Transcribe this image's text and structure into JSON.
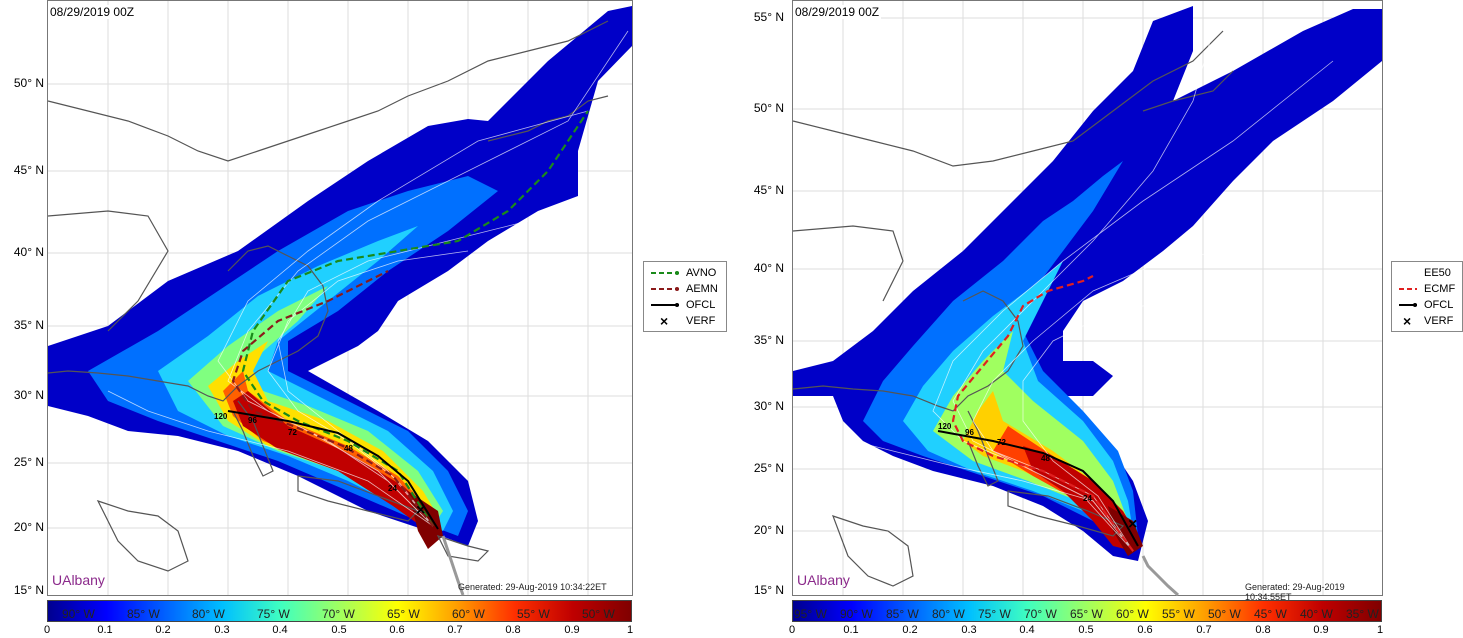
{
  "left": {
    "date": "08/29/2019 00Z",
    "lat_labels": [
      "50° N",
      "45° N",
      "40° N",
      "35° N",
      "30° N",
      "25° N",
      "20° N",
      "15° N"
    ],
    "brand": "UAlbany",
    "generated": "Generated: 29-Aug-2019 10:34:22ET",
    "legend": [
      {
        "label": "AVNO",
        "color": "#1a8a1a",
        "style": "dashed"
      },
      {
        "label": "AEMN",
        "color": "#8b1a1a",
        "style": "dashed"
      },
      {
        "label": "OFCL",
        "color": "#000000",
        "style": "solid"
      },
      {
        "label": "VERF",
        "color": "#000000",
        "style": "x"
      }
    ],
    "colorbar_ticks": [
      "0",
      "0.1",
      "0.2",
      "0.3",
      "0.4",
      "0.5",
      "0.6",
      "0.7",
      "0.8",
      "0.9",
      "1"
    ],
    "lon_labels": [
      "90° W",
      "85° W",
      "80° W",
      "75° W",
      "70° W",
      "65° W",
      "60° W",
      "55° W",
      "50° W"
    ],
    "track_labels": [
      "120",
      "96",
      "72",
      "48",
      "24"
    ]
  },
  "right": {
    "date": "08/29/2019 00Z",
    "lat_labels": [
      "55° N",
      "50° N",
      "45° N",
      "40° N",
      "35° N",
      "30° N",
      "25° N",
      "20° N",
      "15° N"
    ],
    "brand": "UAlbany",
    "generated": "Generated: 29-Aug-2019 10:34:55ET",
    "legend": [
      {
        "label": "EE50",
        "color": "#ffffff",
        "style": "none"
      },
      {
        "label": "ECMF",
        "color": "#e02020",
        "style": "dashed"
      },
      {
        "label": "OFCL",
        "color": "#000000",
        "style": "solid"
      },
      {
        "label": "VERF",
        "color": "#000000",
        "style": "x"
      }
    ],
    "colorbar_ticks": [
      "0",
      "0.1",
      "0.2",
      "0.3",
      "0.4",
      "0.5",
      "0.6",
      "0.7",
      "0.8",
      "0.9",
      "1"
    ],
    "lon_labels": [
      "95° W",
      "90° W",
      "85° W",
      "80° W",
      "75° W",
      "70° W",
      "65° W",
      "60° W",
      "55° W",
      "50° W",
      "45° W",
      "40° W",
      "35° W"
    ],
    "track_labels": [
      "120",
      "96",
      "72",
      "48",
      "24"
    ]
  },
  "colors": {
    "jet": [
      "#00008f",
      "#0000ff",
      "#0060ff",
      "#00c0ff",
      "#40ffbf",
      "#a0ff60",
      "#ffff00",
      "#ff9f00",
      "#ff3000",
      "#bf0000",
      "#800000"
    ],
    "coast": "#555555",
    "border": "#888888"
  }
}
